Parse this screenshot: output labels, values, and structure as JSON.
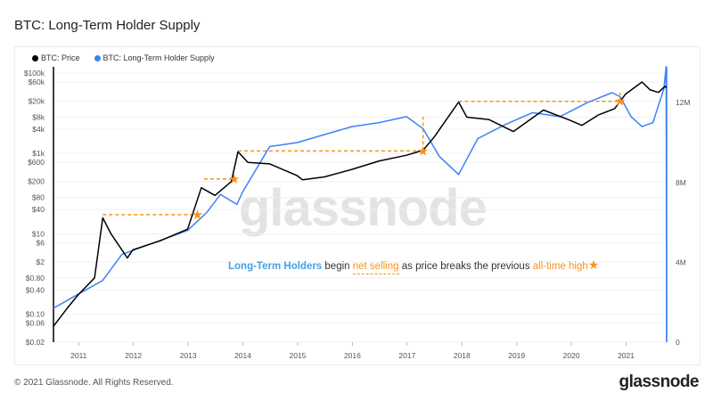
{
  "title": "BTC: Long-Term Holder Supply",
  "legend": [
    {
      "label": "BTC: Price",
      "color": "#000000"
    },
    {
      "label": "BTC: Long-Term Holder Supply",
      "color": "#3b82f6"
    }
  ],
  "annotation": {
    "part1": "Long-Term Holders",
    "part2": " begin ",
    "part3": "net selling",
    "part4": " as price breaks the previous ",
    "part5": "all-time high",
    "star": "★"
  },
  "watermark": "glassnode",
  "footer": "© 2021 Glassnode. All Rights Reserved.",
  "logo": "glassnode",
  "colors": {
    "price": "#000000",
    "supply": "#3b82f6",
    "accent": "#f7931a",
    "highlight_text": "#3fa3e6"
  },
  "chart_data": {
    "type": "line",
    "title": "BTC: Long-Term Holder Supply",
    "x_ticks": [
      "2011",
      "2012",
      "2013",
      "2014",
      "2015",
      "2016",
      "2017",
      "2018",
      "2019",
      "2020",
      "2021"
    ],
    "xlim": [
      2010.55,
      2021.75
    ],
    "y_left": {
      "scale": "log",
      "range": [
        0.02,
        100000
      ],
      "ticks": [
        "$100k",
        "$60k",
        "$20k",
        "$8k",
        "$4k",
        "$1k",
        "$600",
        "$200",
        "$80",
        "$40",
        "$10",
        "$6",
        "$2",
        "$0.80",
        "$0.40",
        "$0.10",
        "$0.06",
        "$0.02"
      ],
      "tick_values": [
        100000,
        60000,
        20000,
        8000,
        4000,
        1000,
        600,
        200,
        80,
        40,
        10,
        6,
        2,
        0.8,
        0.4,
        0.1,
        0.06,
        0.02
      ]
    },
    "y_right": {
      "scale": "linear",
      "range": [
        0,
        14000000
      ],
      "ticks": [
        "12M",
        "8M",
        "4M",
        "0"
      ],
      "tick_values": [
        12000000,
        8000000,
        4000000,
        0
      ]
    },
    "grid": true,
    "legend_position": "top-left",
    "series": [
      {
        "name": "BTC: Price",
        "axis": "left",
        "points": [
          [
            2010.55,
            0.05
          ],
          [
            2010.8,
            0.14
          ],
          [
            2011.0,
            0.3
          ],
          [
            2011.3,
            0.8
          ],
          [
            2011.45,
            25
          ],
          [
            2011.6,
            10
          ],
          [
            2011.9,
            2.5
          ],
          [
            2012.0,
            4
          ],
          [
            2012.5,
            6.7
          ],
          [
            2013.0,
            13
          ],
          [
            2013.25,
            140
          ],
          [
            2013.5,
            90
          ],
          [
            2013.8,
            200
          ],
          [
            2013.92,
            1100
          ],
          [
            2014.1,
            600
          ],
          [
            2014.5,
            550
          ],
          [
            2015.0,
            280
          ],
          [
            2015.1,
            220
          ],
          [
            2015.5,
            260
          ],
          [
            2016.0,
            400
          ],
          [
            2016.5,
            650
          ],
          [
            2017.0,
            900
          ],
          [
            2017.3,
            1200
          ],
          [
            2017.5,
            2500
          ],
          [
            2017.95,
            19000
          ],
          [
            2018.1,
            8000
          ],
          [
            2018.5,
            7000
          ],
          [
            2018.95,
            3500
          ],
          [
            2019.5,
            12000
          ],
          [
            2019.95,
            7000
          ],
          [
            2020.2,
            5000
          ],
          [
            2020.5,
            9000
          ],
          [
            2020.8,
            13000
          ],
          [
            2021.0,
            30000
          ],
          [
            2021.3,
            60000
          ],
          [
            2021.45,
            38000
          ],
          [
            2021.6,
            33000
          ],
          [
            2021.72,
            47000
          ],
          [
            2021.75,
            43000
          ]
        ]
      },
      {
        "name": "BTC: Long-Term Holder Supply",
        "axis": "right",
        "points": [
          [
            2010.55,
            1700000
          ],
          [
            2011.0,
            2400000
          ],
          [
            2011.45,
            3100000
          ],
          [
            2011.8,
            4400000
          ],
          [
            2012.5,
            5100000
          ],
          [
            2013.0,
            5600000
          ],
          [
            2013.35,
            6500000
          ],
          [
            2013.6,
            7400000
          ],
          [
            2013.9,
            6900000
          ],
          [
            2014.0,
            7500000
          ],
          [
            2014.5,
            9800000
          ],
          [
            2015.0,
            10000000
          ],
          [
            2015.5,
            10400000
          ],
          [
            2016.0,
            10800000
          ],
          [
            2016.5,
            11000000
          ],
          [
            2017.0,
            11300000
          ],
          [
            2017.3,
            10700000
          ],
          [
            2017.6,
            9300000
          ],
          [
            2017.95,
            8400000
          ],
          [
            2018.3,
            10200000
          ],
          [
            2018.8,
            10900000
          ],
          [
            2019.3,
            11500000
          ],
          [
            2019.8,
            11300000
          ],
          [
            2020.3,
            12000000
          ],
          [
            2020.75,
            12500000
          ],
          [
            2020.9,
            12300000
          ],
          [
            2021.1,
            11300000
          ],
          [
            2021.3,
            10800000
          ],
          [
            2021.5,
            11000000
          ],
          [
            2021.7,
            12700000
          ],
          [
            2021.74,
            13800000
          ],
          [
            2021.75,
            0
          ]
        ]
      }
    ],
    "ath_breaks": [
      {
        "from": 2011.45,
        "to": 2013.18,
        "price": 30
      },
      {
        "from": 2013.3,
        "to": 2013.85,
        "price": 230
      },
      {
        "from": 2013.92,
        "to": 2017.3,
        "price": 1150,
        "supply_peak": 11300000
      },
      {
        "from": 2017.95,
        "to": 2020.9,
        "price": 19800,
        "supply_peak": 12500000
      }
    ]
  }
}
